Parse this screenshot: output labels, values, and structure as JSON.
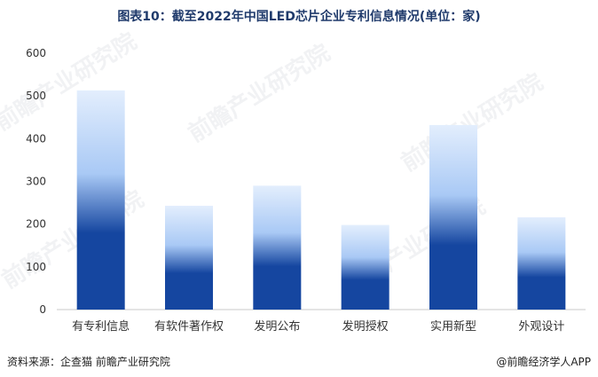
{
  "title": "图表10：截至2022年中国LED芯片企业专利信息情况(单位：家)",
  "footer": {
    "source": "资料来源：企查猫 前瞻产业研究院",
    "brand": "@前瞻经济学人APP"
  },
  "watermark": "前瞻产业研究院",
  "colors": {
    "bar_top": "#e3eefd",
    "bar_mid": "#a9c9f5",
    "bar_bottom": "#1546a0",
    "axis": "#c8c8c8",
    "tick": "#333333"
  },
  "chart_data": {
    "type": "bar",
    "categories": [
      "有专利信息",
      "有软件著作权",
      "发明公布",
      "发明授权",
      "实用新型",
      "外观设计"
    ],
    "values": [
      513,
      243,
      290,
      198,
      432,
      216
    ],
    "ylim": [
      0,
      600
    ],
    "yticks": [
      0,
      100,
      200,
      300,
      400,
      500,
      600
    ],
    "grid": false,
    "legend": "none"
  }
}
